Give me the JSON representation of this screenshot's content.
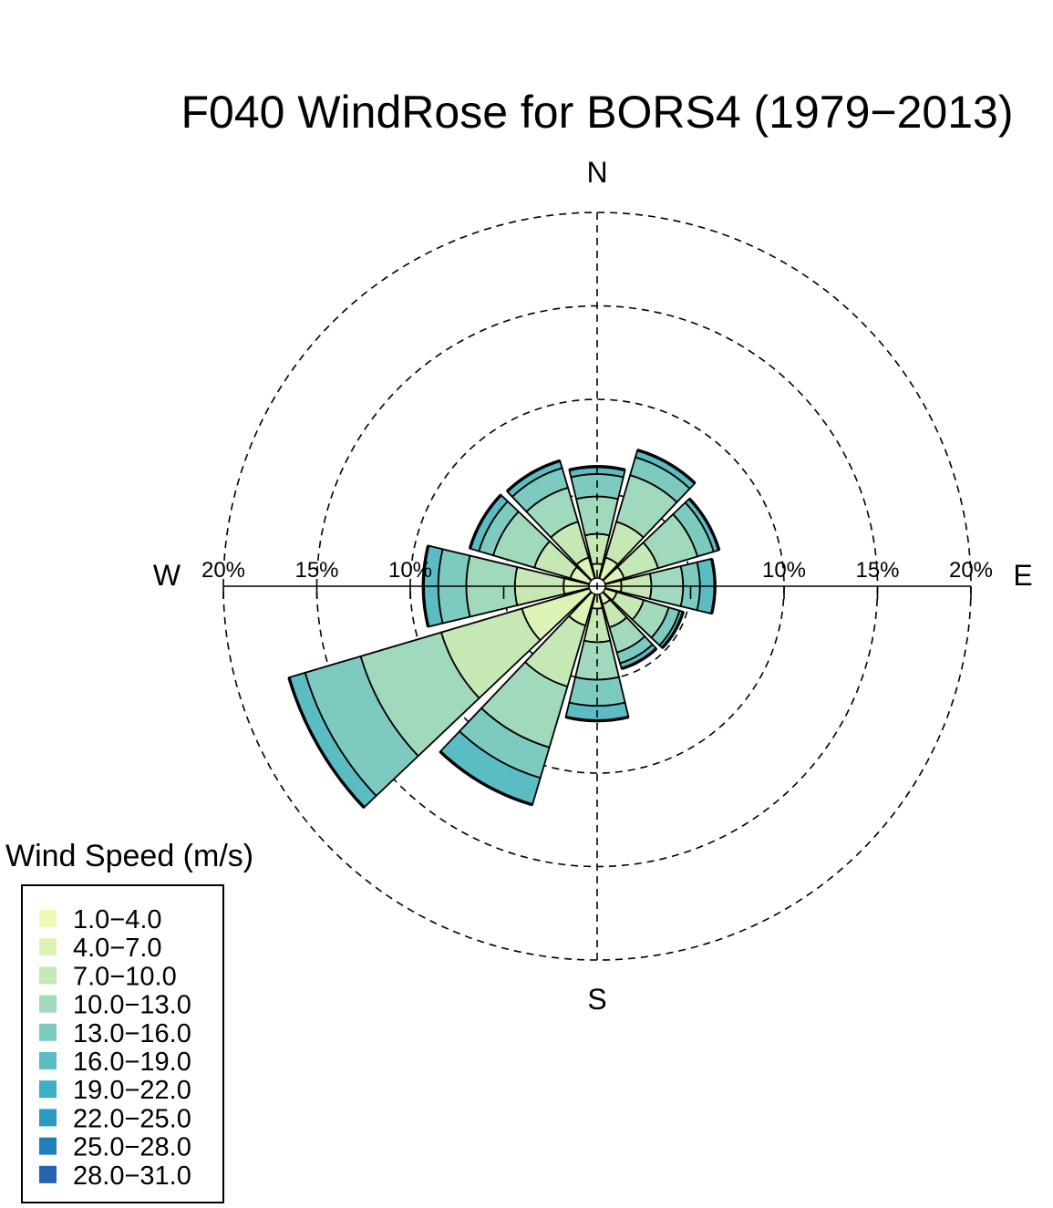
{
  "chart_data": {
    "type": "windrose",
    "title": "F040 WindRose for BORS4 (1979−2013)",
    "compass": {
      "north": "N",
      "east": "E",
      "south": "S",
      "west": "W"
    },
    "radial_axis": {
      "unit": "%",
      "max": 20,
      "gridlines": [
        5,
        10,
        15,
        20
      ],
      "labeled_ticks": [
        {
          "value": 10,
          "label": "10%"
        },
        {
          "value": 15,
          "label": "15%"
        },
        {
          "value": 20,
          "label": "20%"
        }
      ]
    },
    "legend": {
      "title": "Wind Speed (m/s)",
      "placement": "bottom-left",
      "bins": [
        {
          "label": "1.0−4.0",
          "color": "#f0f9b8"
        },
        {
          "label": "4.0−7.0",
          "color": "#def3b6"
        },
        {
          "label": "7.0−10.0",
          "color": "#c6e8b4"
        },
        {
          "label": "10.0−13.0",
          "color": "#a0d9bc"
        },
        {
          "label": "13.0−16.0",
          "color": "#7dcbc0"
        },
        {
          "label": "16.0−19.0",
          "color": "#5bbdc3"
        },
        {
          "label": "19.0−22.0",
          "color": "#3faec7"
        },
        {
          "label": "22.0−25.0",
          "color": "#2a99c3"
        },
        {
          "label": "25.0−28.0",
          "color": "#1f7fba"
        },
        {
          "label": "28.0−31.0",
          "color": "#2863ad"
        }
      ]
    },
    "sectors": [
      {
        "direction_deg": 0,
        "cumulative_pct": [
          0.2,
          1.2,
          2.8,
          4.8,
          6.0,
          6.4
        ]
      },
      {
        "direction_deg": 30,
        "cumulative_pct": [
          0.2,
          1.6,
          3.6,
          6.2,
          7.2,
          7.6
        ]
      },
      {
        "direction_deg": 60,
        "cumulative_pct": [
          0.2,
          1.5,
          3.4,
          5.6,
          6.5,
          6.8
        ]
      },
      {
        "direction_deg": 90,
        "cumulative_pct": [
          0.2,
          1.3,
          2.9,
          4.6,
          5.5,
          6.3
        ]
      },
      {
        "direction_deg": 120,
        "cumulative_pct": [
          0.2,
          1.1,
          2.6,
          4.0,
          4.6,
          4.8
        ]
      },
      {
        "direction_deg": 150,
        "cumulative_pct": [
          0.2,
          1.0,
          2.3,
          3.7,
          4.3,
          4.6
        ]
      },
      {
        "direction_deg": 180,
        "cumulative_pct": [
          0.2,
          1.2,
          3.0,
          5.0,
          6.4,
          7.2
        ]
      },
      {
        "direction_deg": 210,
        "cumulative_pct": [
          0.3,
          2.2,
          5.6,
          9.0,
          10.7,
          12.2
        ]
      },
      {
        "direction_deg": 240,
        "cumulative_pct": [
          0.3,
          4.2,
          8.7,
          13.2,
          16.3,
          17.2
        ]
      },
      {
        "direction_deg": 270,
        "cumulative_pct": [
          0.2,
          1.8,
          4.4,
          7.0,
          8.5,
          9.3
        ]
      },
      {
        "direction_deg": 300,
        "cumulative_pct": [
          0.2,
          1.5,
          3.5,
          5.8,
          6.6,
          7.1
        ]
      },
      {
        "direction_deg": 330,
        "cumulative_pct": [
          0.2,
          1.6,
          3.6,
          5.5,
          6.6,
          7.0
        ]
      }
    ]
  }
}
